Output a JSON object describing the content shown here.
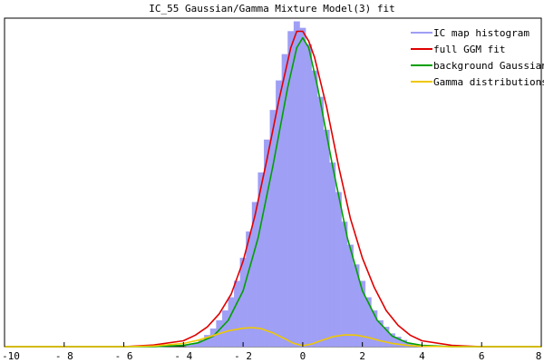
{
  "chart_data": {
    "type": "area",
    "title": "IC_55 Gaussian/Gamma Mixture Model(3) fit",
    "xlabel": "",
    "ylabel": "",
    "xlim": [
      -10,
      8
    ],
    "ylim": [
      0,
      1.0
    ],
    "x_ticks": [
      -10,
      -8,
      -6,
      -4,
      -2,
      0,
      2,
      4,
      6,
      8
    ],
    "x_tick_labels": [
      "-10",
      "- 8",
      "- 6",
      "- 4",
      "- 2",
      "0",
      "2",
      "4",
      "6",
      "8"
    ],
    "grid": false,
    "legend_position": "top-right",
    "series": [
      {
        "name": "IC map histogram",
        "kind": "histogram",
        "color": "#9f9ff5",
        "x": [
          -3.8,
          -3.6,
          -3.4,
          -3.2,
          -3.0,
          -2.8,
          -2.6,
          -2.4,
          -2.2,
          -2.0,
          -1.8,
          -1.6,
          -1.4,
          -1.2,
          -1.0,
          -0.8,
          -0.6,
          -0.4,
          -0.2,
          0.0,
          0.2,
          0.4,
          0.6,
          0.8,
          1.0,
          1.2,
          1.4,
          1.6,
          1.8,
          2.0,
          2.2,
          2.4,
          2.6,
          2.8,
          3.0,
          3.2,
          3.4,
          3.6,
          3.8
        ],
        "values": [
          0.005,
          0.01,
          0.02,
          0.035,
          0.055,
          0.08,
          0.11,
          0.15,
          0.2,
          0.27,
          0.35,
          0.44,
          0.53,
          0.63,
          0.72,
          0.81,
          0.89,
          0.96,
          0.99,
          0.97,
          0.92,
          0.84,
          0.76,
          0.66,
          0.56,
          0.47,
          0.38,
          0.31,
          0.25,
          0.2,
          0.15,
          0.11,
          0.08,
          0.06,
          0.04,
          0.03,
          0.02,
          0.01,
          0.005
        ]
      },
      {
        "name": "full GGM fit",
        "kind": "line",
        "color": "#e00000",
        "x": [
          -10,
          -6,
          -5,
          -4,
          -3.6,
          -3.2,
          -2.8,
          -2.4,
          -2.0,
          -1.6,
          -1.2,
          -0.8,
          -0.4,
          -0.2,
          0.0,
          0.2,
          0.4,
          0.8,
          1.2,
          1.6,
          2.0,
          2.4,
          2.8,
          3.2,
          3.6,
          4.0,
          5.0,
          6.0,
          8.0
        ],
        "values": [
          0.0,
          0.0,
          0.005,
          0.018,
          0.035,
          0.06,
          0.1,
          0.16,
          0.26,
          0.4,
          0.57,
          0.75,
          0.91,
          0.96,
          0.96,
          0.93,
          0.88,
          0.73,
          0.55,
          0.39,
          0.27,
          0.18,
          0.11,
          0.065,
          0.035,
          0.018,
          0.004,
          0.0,
          0.0
        ]
      },
      {
        "name": "background Gaussian",
        "kind": "line",
        "color": "#00a000",
        "x": [
          -10,
          -5,
          -4,
          -3.5,
          -3.0,
          -2.5,
          -2.0,
          -1.5,
          -1.0,
          -0.5,
          -0.2,
          0.0,
          0.2,
          0.5,
          1.0,
          1.5,
          2.0,
          2.5,
          3.0,
          3.5,
          4.0,
          5.0,
          8.0
        ],
        "values": [
          0.0,
          0.0,
          0.004,
          0.012,
          0.032,
          0.08,
          0.17,
          0.33,
          0.55,
          0.79,
          0.91,
          0.94,
          0.91,
          0.79,
          0.55,
          0.33,
          0.17,
          0.08,
          0.032,
          0.012,
          0.004,
          0.0,
          0.0
        ]
      },
      {
        "name": "Gamma distributions",
        "kind": "line",
        "color": "#f0c800",
        "x": [
          -10,
          -6,
          -5,
          -4,
          -3.5,
          -3.0,
          -2.5,
          -2.0,
          -1.7,
          -1.4,
          -1.0,
          -0.6,
          -0.3,
          0.0,
          0.3,
          0.6,
          1.0,
          1.4,
          1.8,
          2.2,
          2.6,
          3.0,
          3.5,
          4.0,
          5.0,
          8.0
        ],
        "values": [
          0.0,
          0.0,
          0.002,
          0.01,
          0.02,
          0.034,
          0.048,
          0.056,
          0.058,
          0.055,
          0.042,
          0.024,
          0.01,
          0.003,
          0.008,
          0.018,
          0.03,
          0.036,
          0.035,
          0.028,
          0.018,
          0.01,
          0.004,
          0.001,
          0.0,
          0.0
        ]
      }
    ]
  }
}
